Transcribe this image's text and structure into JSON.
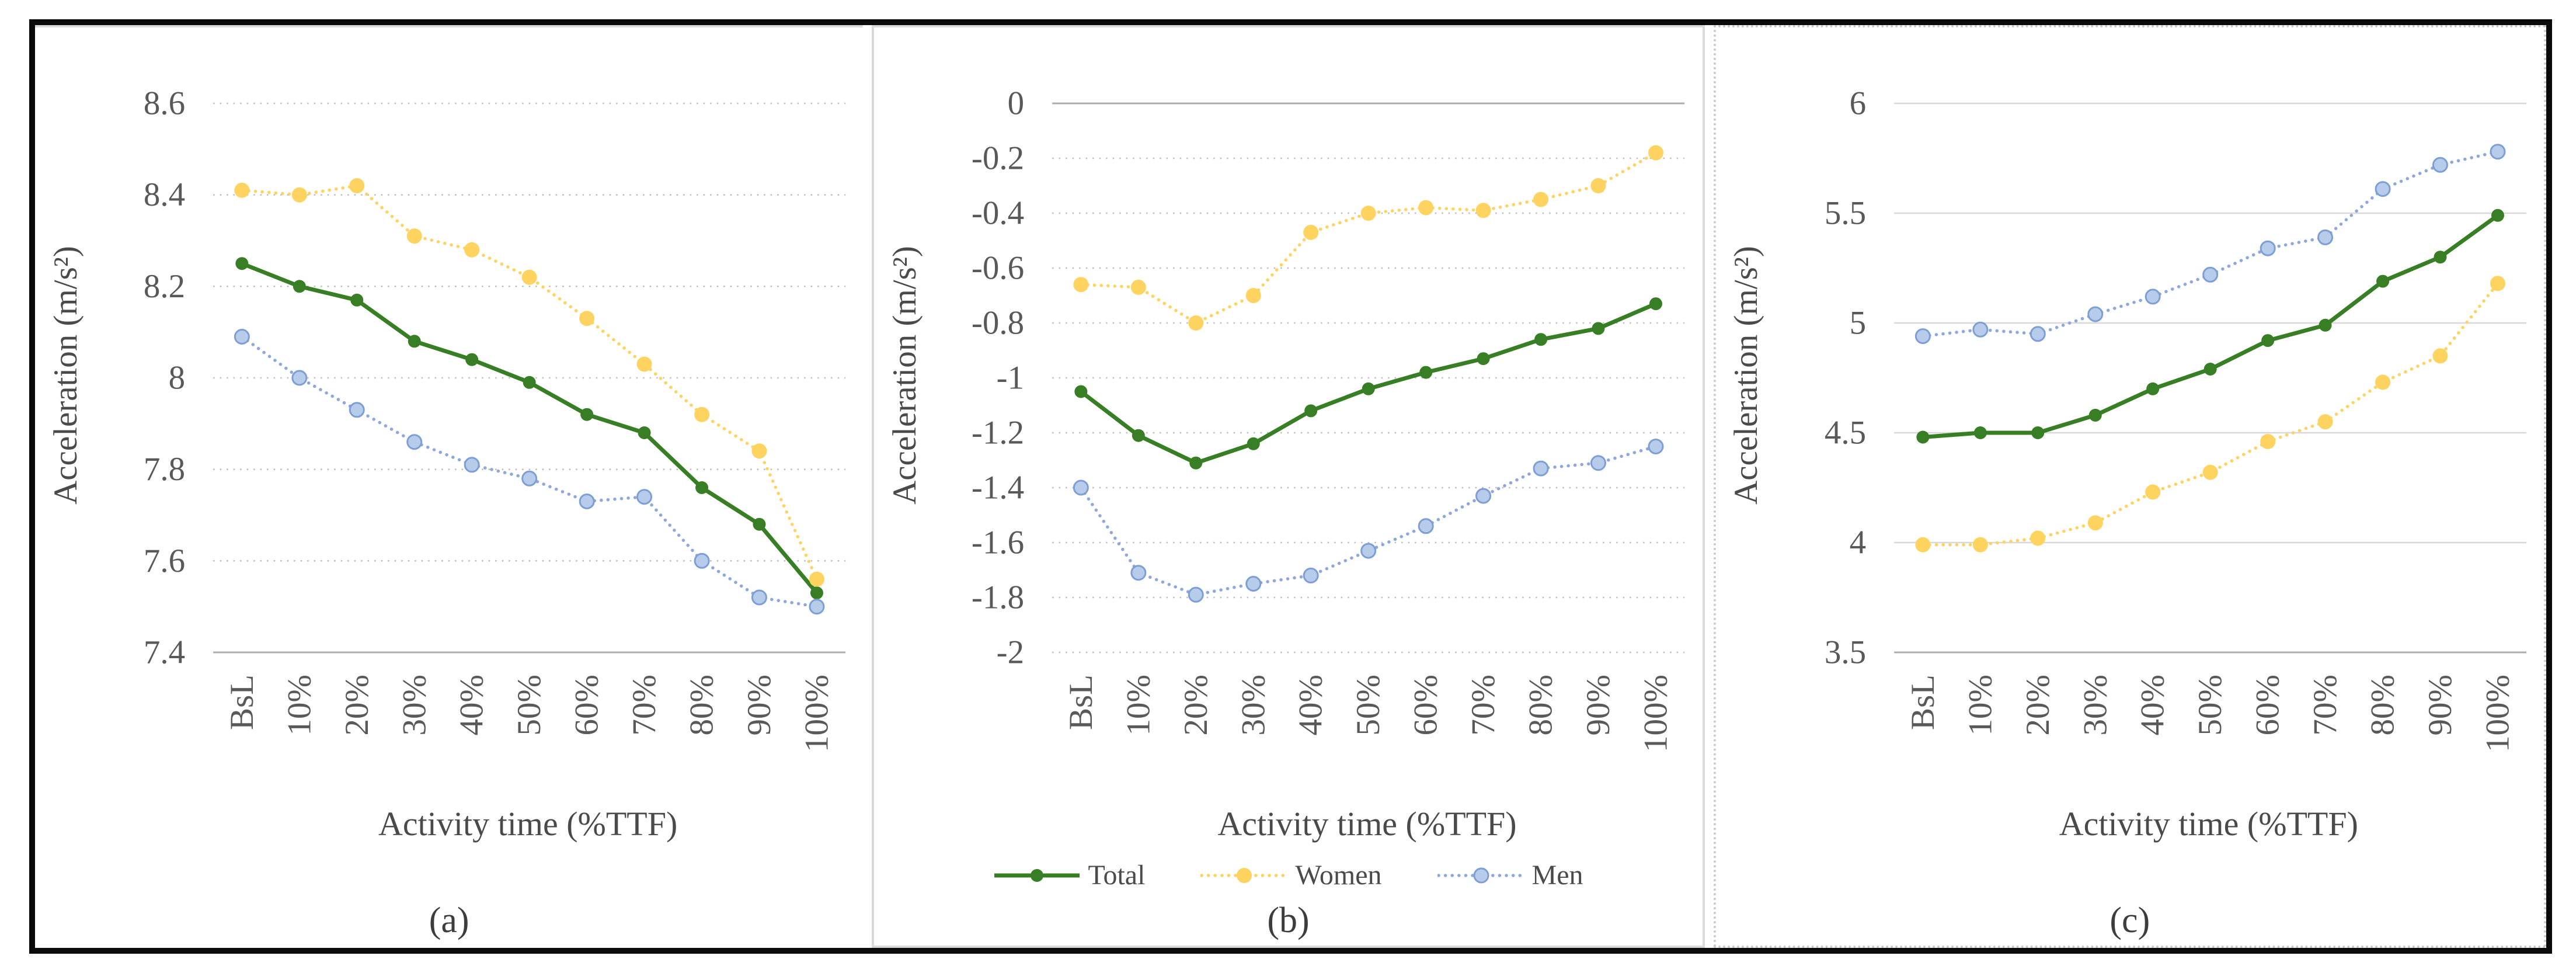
{
  "figure": {
    "background": "#ffffff",
    "border_color": "#0a0a0a",
    "panels": [
      {
        "id": "a",
        "caption": "(a)",
        "ylabel": "Acceleration (m/s²)",
        "xlabel": "Activity time (%TTF)"
      },
      {
        "id": "b",
        "caption": "(b)",
        "ylabel": "Acceleration (m/s²)",
        "xlabel": "Activity time (%TTF)"
      },
      {
        "id": "c",
        "caption": "(c)",
        "ylabel": "Acceleration (m/s²)",
        "xlabel": "Activity time (%TTF)"
      }
    ],
    "colors": {
      "total": "#377E24",
      "women": "#FFD35F",
      "men_line": "#8DA9DB",
      "men_marker_fill": "#B7CCEA",
      "men_marker_stroke": "#7E9FD3",
      "grid_dotted": "#BDBDBD",
      "grid_solid": "#D8D8D8",
      "axis_line": "#ADADAD",
      "tick_text": "#595959",
      "title_text": "#4A4A4A"
    }
  },
  "chart_data": [
    {
      "type": "line",
      "panel": "(a)",
      "xlabel": "Activity time (%TTF)",
      "ylabel": "Acceleration (m/s²)",
      "categories": [
        "BsL",
        "10%",
        "20%",
        "30%",
        "40%",
        "50%",
        "60%",
        "70%",
        "80%",
        "90%",
        "100%"
      ],
      "ylim": [
        7.4,
        8.6
      ],
      "ytick_step": 0.2,
      "grid": "dotted",
      "axis_line": "bottom",
      "legend": false,
      "series": [
        {
          "name": "Total",
          "line": "solid",
          "color": "#377E24",
          "marker_fill": "#377E24",
          "marker_stroke": "none",
          "marker_r": 11,
          "values": [
            8.25,
            8.2,
            8.17,
            8.08,
            8.04,
            7.99,
            7.92,
            7.88,
            7.76,
            7.68,
            7.53
          ]
        },
        {
          "name": "Women",
          "line": "dotted",
          "color": "#FFD35F",
          "marker_fill": "#FFD35F",
          "marker_stroke": "none",
          "marker_r": 13,
          "values": [
            8.41,
            8.4,
            8.42,
            8.31,
            8.28,
            8.22,
            8.13,
            8.03,
            7.92,
            7.84,
            7.56
          ]
        },
        {
          "name": "Men",
          "line": "dotted",
          "color": "#8DA9DB",
          "marker_fill": "#B7CCEA",
          "marker_stroke": "#7E9FD3",
          "marker_r": 12,
          "values": [
            8.09,
            8.0,
            7.93,
            7.86,
            7.81,
            7.78,
            7.73,
            7.74,
            7.6,
            7.52,
            7.5
          ]
        }
      ]
    },
    {
      "type": "line",
      "panel": "(b)",
      "xlabel": "Activity time (%TTF)",
      "ylabel": "Acceleration (m/s²)",
      "categories": [
        "BsL",
        "10%",
        "20%",
        "30%",
        "40%",
        "50%",
        "60%",
        "70%",
        "80%",
        "90%",
        "100%"
      ],
      "ylim": [
        -2,
        0
      ],
      "ytick_step": 0.2,
      "grid": "dotted",
      "axis_line": "top",
      "legend": true,
      "legend_position": "bottom",
      "legend_labels": [
        "Total",
        "Women",
        "Men"
      ],
      "series": [
        {
          "name": "Total",
          "line": "solid",
          "color": "#377E24",
          "marker_fill": "#377E24",
          "marker_stroke": "none",
          "marker_r": 11,
          "values": [
            -1.05,
            -1.21,
            -1.31,
            -1.24,
            -1.12,
            -1.04,
            -0.98,
            -0.93,
            -0.86,
            -0.82,
            -0.73
          ]
        },
        {
          "name": "Women",
          "line": "dotted",
          "color": "#FFD35F",
          "marker_fill": "#FFD35F",
          "marker_stroke": "none",
          "marker_r": 13,
          "values": [
            -0.66,
            -0.67,
            -0.8,
            -0.7,
            -0.47,
            -0.4,
            -0.38,
            -0.39,
            -0.35,
            -0.3,
            -0.18
          ]
        },
        {
          "name": "Men",
          "line": "dotted",
          "color": "#8DA9DB",
          "marker_fill": "#B7CCEA",
          "marker_stroke": "#7E9FD3",
          "marker_r": 12,
          "values": [
            -1.4,
            -1.71,
            -1.79,
            -1.75,
            -1.72,
            -1.63,
            -1.54,
            -1.43,
            -1.33,
            -1.31,
            -1.25
          ]
        }
      ]
    },
    {
      "type": "line",
      "panel": "(c)",
      "xlabel": "Activity time (%TTF)",
      "ylabel": "Acceleration (m/s²)",
      "categories": [
        "BsL",
        "10%",
        "20%",
        "30%",
        "40%",
        "50%",
        "60%",
        "70%",
        "80%",
        "90%",
        "100%"
      ],
      "ylim": [
        3.5,
        6
      ],
      "ytick_step": 0.5,
      "grid": "solid",
      "axis_line": "bottom",
      "legend": false,
      "series": [
        {
          "name": "Total",
          "line": "solid",
          "color": "#377E24",
          "marker_fill": "#377E24",
          "marker_stroke": "none",
          "marker_r": 11,
          "values": [
            4.48,
            4.5,
            4.5,
            4.58,
            4.7,
            4.79,
            4.92,
            4.99,
            5.19,
            5.3,
            5.49
          ]
        },
        {
          "name": "Women",
          "line": "dotted",
          "color": "#FFD35F",
          "marker_fill": "#FFD35F",
          "marker_stroke": "none",
          "marker_r": 13,
          "values": [
            3.99,
            3.99,
            4.02,
            4.09,
            4.23,
            4.32,
            4.46,
            4.55,
            4.73,
            4.85,
            5.18
          ]
        },
        {
          "name": "Men",
          "line": "dotted",
          "color": "#8DA9DB",
          "marker_fill": "#B7CCEA",
          "marker_stroke": "#7E9FD3",
          "marker_r": 12,
          "values": [
            4.94,
            4.97,
            4.95,
            5.04,
            5.12,
            5.22,
            5.34,
            5.39,
            5.61,
            5.72,
            5.78
          ]
        }
      ]
    }
  ]
}
